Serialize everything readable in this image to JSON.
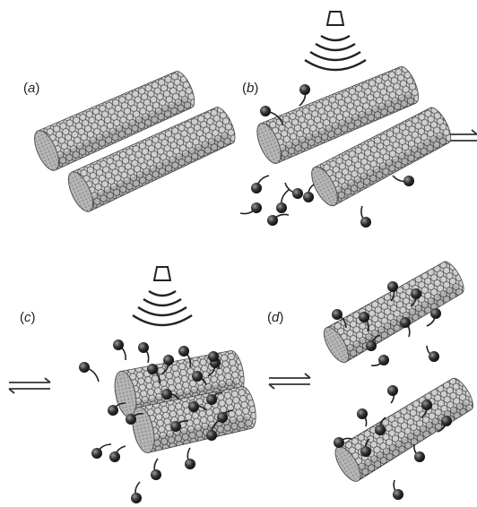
{
  "panels": [
    {
      "id": "a",
      "label_open": "(",
      "letter": "a",
      "label_close": ")"
    },
    {
      "id": "b",
      "label_open": "(",
      "letter": "b",
      "label_close": ")"
    },
    {
      "id": "c",
      "label_open": "(",
      "letter": "c",
      "label_close": ")"
    },
    {
      "id": "d",
      "label_open": "(",
      "letter": "d",
      "label_close": ")"
    }
  ],
  "colors": {
    "tube_shell": "#c9c9c9",
    "tube_mesh": "#3a3a3a",
    "tube_end": "#b0b0b0",
    "surfactant_head": "#2a2a2a",
    "surfactant_tail": "#222222",
    "arrow": "#333333",
    "ultrasound": "#222222"
  },
  "icons": [
    "ultrasound-probe-icon",
    "equilibrium-arrow-icon",
    "surfactant-molecule-icon",
    "carbon-nanotube-icon"
  ]
}
